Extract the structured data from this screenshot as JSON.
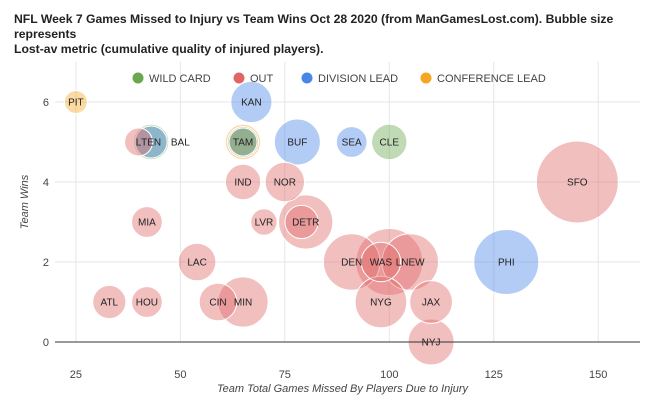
{
  "title": {
    "line1": "NFL Week 7 Games Missed to Injury vs Team Wins Oct 28 2020 (from ManGamesLost.com). Bubble size represents",
    "line2": "Lost-av metric (cumulative quality of injured players)."
  },
  "chart_data": {
    "type": "scatter",
    "bubble": true,
    "xlabel": "Team Total Games Missed By Players Due to Injury",
    "ylabel": "Team Wins",
    "xlim": [
      20,
      160
    ],
    "ylim": [
      0,
      7
    ],
    "xticks": [
      25,
      50,
      75,
      100,
      125,
      150
    ],
    "yticks": [
      0,
      2,
      4,
      6
    ],
    "grid": true,
    "legend_position": "top",
    "series": [
      {
        "name": "WILD CARD",
        "color": "#6aa84f"
      },
      {
        "name": "OUT",
        "color": "#e06666"
      },
      {
        "name": "DIVISION LEAD",
        "color": "#4a86e8"
      },
      {
        "name": "CONFERENCE LEAD",
        "color": "#f6a623"
      }
    ],
    "points": [
      {
        "label": "PIT",
        "x": 25,
        "y": 6,
        "size": 1.5,
        "series": "CONFERENCE LEAD"
      },
      {
        "label": "KAN",
        "x": 67,
        "y": 6,
        "size": 9,
        "series": "DIVISION LEAD"
      },
      {
        "label": "L",
        "x": 40,
        "y": 5,
        "size": 3,
        "series": "OUT"
      },
      {
        "label": "TEN",
        "x": 43,
        "y": 5,
        "size": 4.5,
        "series": "DIVISION LEAD"
      },
      {
        "label": "",
        "x": 43,
        "y": 5,
        "size": 6,
        "series": "WILD CARD"
      },
      {
        "label": "BAL",
        "x": 50,
        "y": 5,
        "size": 0,
        "series": "WILD CARD"
      },
      {
        "label": "TAM",
        "x": 65,
        "y": 5,
        "size": 6,
        "series": "CONFERENCE LEAD"
      },
      {
        "label": "",
        "x": 65,
        "y": 5,
        "size": 3,
        "series": "WILD CARD"
      },
      {
        "label": "",
        "x": 65,
        "y": 5,
        "size": 4,
        "series": "DIVISION LEAD"
      },
      {
        "label": "BUF",
        "x": 78,
        "y": 5,
        "size": 12,
        "series": "DIVISION LEAD"
      },
      {
        "label": "SEA",
        "x": 91,
        "y": 5,
        "size": 4,
        "series": "DIVISION LEAD"
      },
      {
        "label": "CLE",
        "x": 100,
        "y": 5,
        "size": 6,
        "series": "WILD CARD"
      },
      {
        "label": "IND",
        "x": 65,
        "y": 4,
        "size": 6,
        "series": "OUT"
      },
      {
        "label": "NOR",
        "x": 75,
        "y": 4,
        "size": 8,
        "series": "OUT"
      },
      {
        "label": "SFO",
        "x": 145,
        "y": 4,
        "size": 48,
        "series": "OUT"
      },
      {
        "label": "MIA",
        "x": 42,
        "y": 3,
        "size": 4,
        "series": "OUT"
      },
      {
        "label": "LVR",
        "x": 70,
        "y": 3,
        "size": 2.5,
        "series": "OUT"
      },
      {
        "label": "DETR",
        "x": 80,
        "y": 3,
        "size": 18,
        "series": "OUT"
      },
      {
        "label": "",
        "x": 79,
        "y": 3,
        "size": 5,
        "series": "OUT"
      },
      {
        "label": "LAC",
        "x": 54,
        "y": 2,
        "size": 7,
        "series": "OUT"
      },
      {
        "label": "DEN",
        "x": 91,
        "y": 2,
        "size": 20,
        "series": "OUT"
      },
      {
        "label": "",
        "x": 100,
        "y": 2,
        "size": 30,
        "series": "OUT"
      },
      {
        "label": "WAS",
        "x": 98,
        "y": 2,
        "size": 8,
        "series": "OUT"
      },
      {
        "label": "LNEW",
        "x": 105,
        "y": 2,
        "size": 20,
        "series": "OUT"
      },
      {
        "label": "PHI",
        "x": 128,
        "y": 2,
        "size": 28,
        "series": "DIVISION LEAD"
      },
      {
        "label": "ATL",
        "x": 33,
        "y": 1,
        "size": 5,
        "series": "OUT"
      },
      {
        "label": "HOU",
        "x": 42,
        "y": 1,
        "size": 4,
        "series": "OUT"
      },
      {
        "label": "CIN",
        "x": 59,
        "y": 1,
        "size": 7,
        "series": "OUT"
      },
      {
        "label": "MIN",
        "x": 65,
        "y": 1,
        "size": 15,
        "series": "OUT"
      },
      {
        "label": "NYG",
        "x": 98,
        "y": 1,
        "size": 16,
        "series": "OUT"
      },
      {
        "label": "JAX",
        "x": 110,
        "y": 1,
        "size": 10,
        "series": "OUT"
      },
      {
        "label": "NYJ",
        "x": 110,
        "y": 0,
        "size": 12,
        "series": "OUT"
      }
    ]
  }
}
